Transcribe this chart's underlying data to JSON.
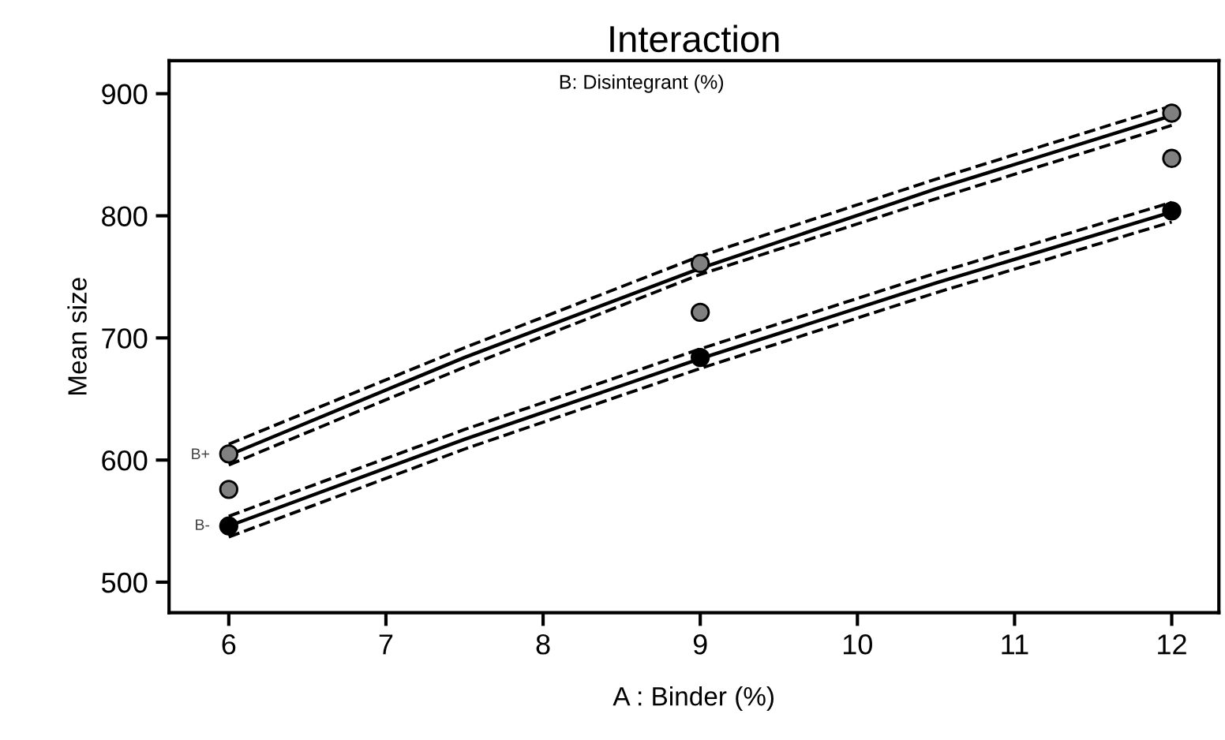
{
  "chart_data": {
    "type": "line",
    "title": "Interaction",
    "legend_title": "B: Disintegrant (%)",
    "xlabel": "A : Binder (%)",
    "ylabel": "Mean size",
    "xlim": [
      5.62,
      12.3
    ],
    "xticks": [
      6,
      7,
      8,
      9,
      10,
      11,
      12
    ],
    "ylim": [
      475,
      927
    ],
    "yticks": [
      500,
      600,
      700,
      800,
      900
    ],
    "grid": false,
    "legend": false,
    "marker": "none",
    "series": [
      {
        "name": "B+",
        "color": "#000000",
        "x": [
          6,
          7.5,
          9,
          10.5,
          12
        ],
        "values": [
          604,
          684,
          757,
          822,
          882
        ],
        "line_style": "solid"
      },
      {
        "color": "#000000",
        "x": [
          6,
          7.5,
          9,
          10.5,
          12
        ],
        "values": [
          613,
          692,
          767,
          830,
          890
        ],
        "line_style": "dashed"
      },
      {
        "color": "#000000",
        "x": [
          6,
          7.5,
          9,
          10.5,
          12
        ],
        "values": [
          596,
          676,
          752,
          814,
          874
        ],
        "line_style": "dashed"
      },
      {
        "name": "B-",
        "color": "#000000",
        "x": [
          6,
          7.5,
          9,
          10.5,
          12
        ],
        "values": [
          546,
          617,
          683,
          745,
          803
        ],
        "line_style": "solid"
      },
      {
        "color": "#000000",
        "x": [
          6,
          7.5,
          9,
          10.5,
          12
        ],
        "values": [
          554,
          625,
          691,
          753,
          811
        ],
        "line_style": "dashed"
      },
      {
        "color": "#000000",
        "x": [
          6,
          7.5,
          9,
          10.5,
          12
        ],
        "values": [
          537,
          609,
          675,
          737,
          795
        ],
        "line_style": "dashed"
      },
      {
        "type": "scatter",
        "color": "#808080",
        "x": [
          6,
          6,
          9,
          9,
          12,
          12
        ],
        "values": [
          605,
          576,
          761,
          721,
          884,
          847
        ],
        "marker": "circle"
      },
      {
        "type": "scatter",
        "color": "#000000",
        "x": [
          6,
          9,
          12
        ],
        "values": [
          546,
          684,
          804
        ],
        "marker": "circle"
      }
    ]
  }
}
